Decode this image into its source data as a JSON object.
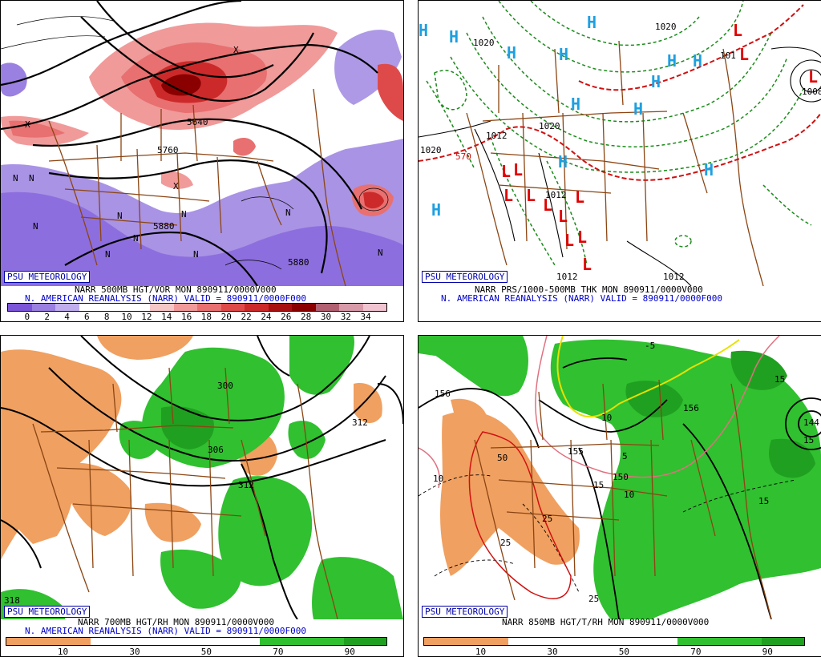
{
  "panels": [
    {
      "id": "tl",
      "badge": "PSU METEOROLOGY",
      "caption_line1": "NARR 500MB HGT/VOR MON 890911/0000V000",
      "caption_line2": "N. AMERICAN REANALYSIS (NARR) VALID = 890911/0000F000",
      "colorbar": {
        "colors": [
          "#7b55d8",
          "#9a80e0",
          "#c0aeee",
          "#ffffff",
          "#ffffff",
          "#ffffff",
          "#f6c7c7",
          "#f09a9a",
          "#e87070",
          "#de4a4a",
          "#cc2a2a",
          "#a81010",
          "#8a0000",
          "#b06070",
          "#d79aa8",
          "#f0c4d0"
        ],
        "labels": [
          "0",
          "2",
          "4",
          "6",
          "8",
          "10",
          "12",
          "14",
          "16",
          "18",
          "20",
          "22",
          "24",
          "26",
          "28",
          "30",
          "32",
          "34"
        ]
      },
      "map_labels": [
        "5640",
        "5760",
        "5880",
        "5880",
        "N",
        "N",
        "N",
        "N",
        "N",
        "N",
        "N",
        "N",
        "N",
        "N",
        "X",
        "X",
        "X"
      ]
    },
    {
      "id": "tr",
      "badge": "PSU METEOROLOGY",
      "caption_line1": "NARR PRS/1000-500MB THK MON 890911/0000V000",
      "caption_line2": "N. AMERICAN REANALYSIS (NARR) VALID = 890911/0000F000",
      "map_labels": [
        "1020",
        "1020",
        "1020",
        "1020",
        "1012",
        "1012",
        "1012",
        "1012",
        "1008",
        "570",
        "101"
      ],
      "highs": [
        "H",
        "H",
        "H",
        "H",
        "H",
        "H",
        "H",
        "H",
        "H",
        "H",
        "H",
        "H",
        "H"
      ],
      "lows": [
        "L",
        "L",
        "L",
        "L",
        "L",
        "L",
        "L",
        "L",
        "L",
        "L",
        "L",
        "L",
        "L"
      ]
    },
    {
      "id": "bl",
      "badge": "PSU METEOROLOGY",
      "caption_line1": "NARR 700MB HGT/RH MON 890911/0000V000",
      "caption_line2": "N. AMERICAN REANALYSIS (NARR) VALID = 890911/0000F000",
      "colorbar": {
        "colors": [
          "#f0a060",
          "#f0a060",
          "#ffffff",
          "#ffffff",
          "#ffffff",
          "#ffffff",
          "#30c030",
          "#30c030",
          "#20a020"
        ],
        "labels": [
          "10",
          "30",
          "50",
          "70",
          "90"
        ]
      },
      "map_labels": [
        "300",
        "306",
        "312",
        "312",
        "318"
      ]
    },
    {
      "id": "br",
      "badge": "PSU METEOROLOGY",
      "caption_line1": "NARR 850MB HGT/T/RH MON 890911/0000V000",
      "caption_line2": "",
      "colorbar": {
        "colors": [
          "#f0a060",
          "#f0a060",
          "#ffffff",
          "#ffffff",
          "#ffffff",
          "#ffffff",
          "#30c030",
          "#30c030",
          "#20a020"
        ],
        "labels": [
          "10",
          "30",
          "50",
          "70",
          "90"
        ]
      },
      "map_labels": [
        "156",
        "156",
        "155",
        "150",
        "144",
        "-5",
        "5",
        "10",
        "10",
        "10",
        "15",
        "15",
        "15",
        "15",
        "25",
        "25",
        "25",
        "50"
      ]
    }
  ]
}
